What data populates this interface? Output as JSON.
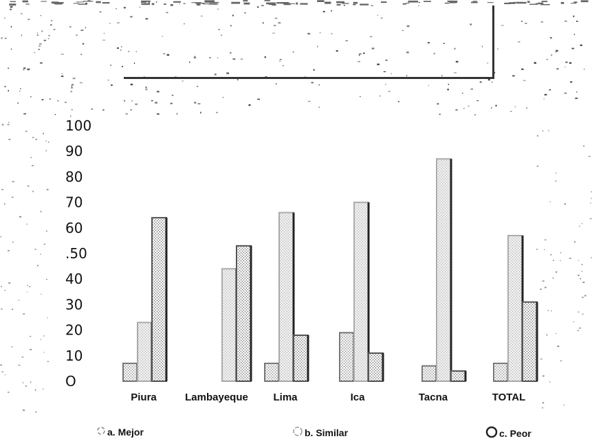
{
  "chart_data": {
    "type": "bar",
    "title": "",
    "xlabel": "",
    "ylabel": "",
    "ylim": [
      0,
      100
    ],
    "yticks": [
      "O",
      "10",
      "20",
      "30",
      "40",
      ".50",
      "60",
      "70",
      "80",
      "90",
      "100"
    ],
    "categories": [
      "Piura",
      "Lambayeque",
      "Lima",
      "Ica",
      "Tacna",
      "TOTAL"
    ],
    "series": [
      {
        "name": "a. Mejor",
        "values": [
          7,
          0,
          7,
          19,
          6,
          7
        ],
        "color": "#777777"
      },
      {
        "name": "b. Similar",
        "values": [
          23,
          44,
          66,
          70,
          87,
          57
        ],
        "color": "#aaaaaa"
      },
      {
        "name": "c. Peor",
        "values": [
          64,
          53,
          18,
          11,
          4,
          31
        ],
        "color": "#555555"
      }
    ],
    "legend_position": "bottom",
    "grid": false
  }
}
